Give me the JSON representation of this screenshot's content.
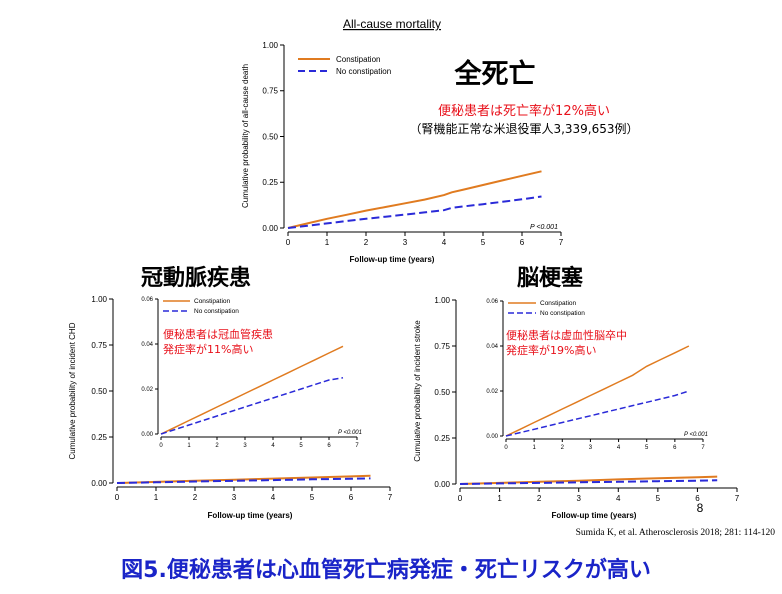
{
  "colors": {
    "constipation": "#e07b20",
    "no_constipation": "#2a2ad8",
    "red_note": "#e8101a",
    "footer_blue": "#1a24c8",
    "axis": "#000000"
  },
  "top_title": "All-cause mortality",
  "top_heading": "全死亡",
  "top_note_red": "便秘患者は死亡率が12%高い",
  "top_note_black": "（腎機能正常な米退役軍人3,339,653例）",
  "chd_heading": "冠動脈疾患",
  "chd_note_line1": "便秘患者は冠血管疾患",
  "chd_note_line2": "発症率が11%高い",
  "stroke_heading": "脳梗塞",
  "stroke_note_line1": "便秘患者は虚血性脳卒中",
  "stroke_note_line2": "発症率が19%高い",
  "page_number": "8",
  "citation": "Sumida K, et al. Atherosclerosis 2018; 281: 114-120",
  "footer": "図5.便秘患者は心血管死亡病発症・死亡リスクが高い",
  "chart_data": [
    {
      "id": "top",
      "type": "line",
      "title": "All-cause mortality",
      "xlabel": "Follow-up time (years)",
      "ylabel": "Cumulative probability of all-cause death",
      "x_ticks": [
        "0",
        "1",
        "2",
        "3",
        "4",
        "5",
        "6",
        "7"
      ],
      "y_ticks": [
        "0.00",
        "0.25",
        "0.50",
        "0.75",
        "1.00"
      ],
      "xlim": [
        0,
        7
      ],
      "ylim": [
        0,
        1
      ],
      "legend": [
        "Constipation",
        "No constipation"
      ],
      "annotation": "P <0.001",
      "series": [
        {
          "name": "Constipation",
          "x": [
            0,
            0.5,
            1,
            1.5,
            2,
            2.5,
            3,
            3.5,
            4,
            4.2,
            4.5,
            5,
            5.5,
            6,
            6.5
          ],
          "y": [
            0,
            0.025,
            0.05,
            0.072,
            0.095,
            0.115,
            0.135,
            0.155,
            0.18,
            0.195,
            0.21,
            0.235,
            0.26,
            0.285,
            0.31
          ]
        },
        {
          "name": "No constipation",
          "x": [
            0,
            0.5,
            1,
            1.5,
            2,
            2.5,
            3,
            3.5,
            4,
            4.2,
            4.5,
            5,
            5.5,
            6,
            6.5
          ],
          "y": [
            0,
            0.012,
            0.025,
            0.038,
            0.05,
            0.062,
            0.073,
            0.085,
            0.097,
            0.11,
            0.118,
            0.13,
            0.143,
            0.157,
            0.172
          ]
        }
      ]
    },
    {
      "id": "chd",
      "type": "line",
      "xlabel": "Follow-up time (years)",
      "ylabel": "Cumulative probability of incident CHD",
      "x_ticks": [
        "0",
        "1",
        "2",
        "3",
        "4",
        "5",
        "6",
        "7"
      ],
      "y_ticks": [
        "0.00",
        "0.25",
        "0.50",
        "0.75",
        "1.00"
      ],
      "xlim": [
        0,
        7
      ],
      "ylim": [
        0,
        1
      ],
      "series": [
        {
          "name": "Constipation",
          "x": [
            0,
            1,
            2,
            3,
            4,
            5,
            6,
            6.5
          ],
          "y": [
            0,
            0.006,
            0.012,
            0.018,
            0.024,
            0.03,
            0.036,
            0.039
          ]
        },
        {
          "name": "No constipation",
          "x": [
            0,
            1,
            2,
            3,
            4,
            5,
            6,
            6.5
          ],
          "y": [
            0,
            0.004,
            0.008,
            0.012,
            0.016,
            0.02,
            0.023,
            0.025
          ]
        }
      ],
      "inset": {
        "x_ticks": [
          "0",
          "1",
          "2",
          "3",
          "4",
          "5",
          "6",
          "7"
        ],
        "y_ticks": [
          "0.00",
          "0.02",
          "0.04",
          "0.06"
        ],
        "xlim": [
          0,
          7
        ],
        "ylim": [
          0,
          0.06
        ],
        "legend": [
          "Constipation",
          "No constipation"
        ],
        "annotation": "P <0.001",
        "series": [
          {
            "name": "Constipation",
            "x": [
              0,
              0.5,
              1,
              1.5,
              2,
              2.5,
              3,
              3.5,
              4,
              4.5,
              5,
              5.5,
              6,
              6.5
            ],
            "y": [
              0,
              0.003,
              0.006,
              0.009,
              0.012,
              0.015,
              0.018,
              0.021,
              0.024,
              0.027,
              0.03,
              0.033,
              0.036,
              0.039
            ]
          },
          {
            "name": "No constipation",
            "x": [
              0,
              0.5,
              1,
              1.5,
              2,
              2.5,
              3,
              3.5,
              4,
              4.5,
              5,
              5.5,
              6,
              6.5
            ],
            "y": [
              0,
              0.002,
              0.004,
              0.006,
              0.008,
              0.01,
              0.012,
              0.014,
              0.016,
              0.018,
              0.02,
              0.022,
              0.024,
              0.025
            ]
          }
        ]
      }
    },
    {
      "id": "stroke",
      "type": "line",
      "xlabel": "Follow-up time (years)",
      "ylabel": "Cumulative probability of incident stroke",
      "x_ticks": [
        "0",
        "1",
        "2",
        "3",
        "4",
        "5",
        "6",
        "7"
      ],
      "y_ticks": [
        "0.00",
        "0.25",
        "0.50",
        "0.75",
        "1.00"
      ],
      "xlim": [
        0,
        7
      ],
      "ylim": [
        0,
        1
      ],
      "series": [
        {
          "name": "Constipation",
          "x": [
            0,
            1,
            2,
            3,
            4,
            5,
            6,
            6.5
          ],
          "y": [
            0,
            0.006,
            0.012,
            0.018,
            0.025,
            0.031,
            0.037,
            0.04
          ]
        },
        {
          "name": "No constipation",
          "x": [
            0,
            1,
            2,
            3,
            4,
            5,
            6,
            6.5
          ],
          "y": [
            0,
            0.003,
            0.006,
            0.009,
            0.012,
            0.015,
            0.018,
            0.02
          ]
        }
      ],
      "inset": {
        "x_ticks": [
          "0",
          "1",
          "2",
          "3",
          "4",
          "5",
          "6",
          "7"
        ],
        "y_ticks": [
          "0.00",
          "0.02",
          "0.04",
          "0.06"
        ],
        "xlim": [
          0,
          7
        ],
        "ylim": [
          0,
          0.06
        ],
        "legend": [
          "Constipation",
          "No constipation"
        ],
        "annotation": "P <0.001",
        "series": [
          {
            "name": "Constipation",
            "x": [
              0,
              0.5,
              1,
              1.5,
              2,
              2.5,
              3,
              3.5,
              4,
              4.5,
              5,
              5.5,
              6,
              6.5
            ],
            "y": [
              0,
              0.003,
              0.006,
              0.009,
              0.012,
              0.015,
              0.018,
              0.021,
              0.024,
              0.027,
              0.031,
              0.034,
              0.037,
              0.04
            ]
          },
          {
            "name": "No constipation",
            "x": [
              0,
              0.5,
              1,
              1.5,
              2,
              2.5,
              3,
              3.5,
              4,
              4.5,
              5,
              5.5,
              6,
              6.5
            ],
            "y": [
              0,
              0.0015,
              0.003,
              0.0045,
              0.006,
              0.0075,
              0.009,
              0.0105,
              0.012,
              0.0135,
              0.015,
              0.0165,
              0.018,
              0.02
            ]
          }
        ]
      }
    }
  ]
}
